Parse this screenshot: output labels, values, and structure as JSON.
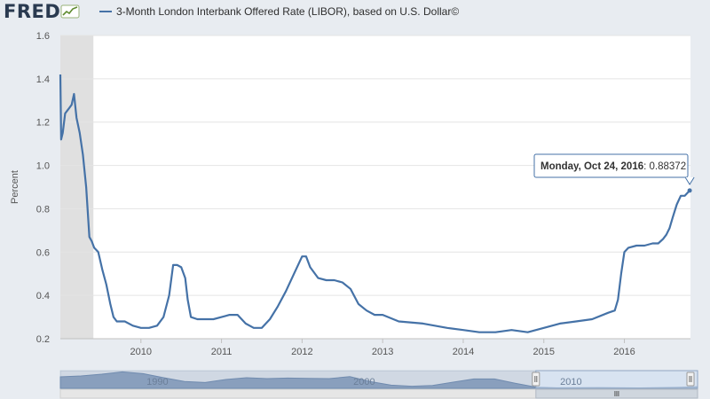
{
  "header": {
    "logo_text": "FRED",
    "logo_icon": "sparkline-icon",
    "series_title": "3-Month London Interbank Offered Rate (LIBOR), based on U.S. Dollar©"
  },
  "colors": {
    "series": "#4572a7",
    "recession_shade": "#e0e0e0",
    "plot_background": "#ffffff",
    "page_background": "#e8ecf1",
    "navigator_fill": "#8fa6c3",
    "navigator_selection": "#c7d7ec"
  },
  "tooltip": {
    "date": "Monday, Oct 24, 2016",
    "value_text": ": 0.88372",
    "x": 2016.81,
    "y": 0.884
  },
  "chart_data": {
    "type": "line",
    "title": "3-Month London Interbank Offered Rate (LIBOR), based on U.S. Dollar©",
    "xlabel": "",
    "ylabel": "Percent",
    "xlim": [
      2009.0,
      2016.82
    ],
    "ylim": [
      0.2,
      1.6
    ],
    "yticks": [
      "0.2",
      "0.4",
      "0.6",
      "0.8",
      "1.0",
      "1.2",
      "1.4",
      "1.6"
    ],
    "xticks": [
      "2010",
      "2011",
      "2012",
      "2013",
      "2014",
      "2015",
      "2016"
    ],
    "grid": true,
    "recession_band": [
      2009.0,
      2009.41
    ],
    "series": [
      {
        "name": "3-Month London Interbank Offered Rate (LIBOR), based on U.S. Dollar©",
        "x": [
          2009.0,
          2009.01,
          2009.03,
          2009.06,
          2009.1,
          2009.14,
          2009.17,
          2009.2,
          2009.24,
          2009.28,
          2009.32,
          2009.36,
          2009.39,
          2009.42,
          2009.47,
          2009.52,
          2009.57,
          2009.62,
          2009.66,
          2009.7,
          2009.8,
          2009.9,
          2010.0,
          2010.1,
          2010.2,
          2010.28,
          2010.35,
          2010.4,
          2010.45,
          2010.5,
          2010.55,
          2010.58,
          2010.62,
          2010.7,
          2010.8,
          2010.9,
          2011.0,
          2011.1,
          2011.2,
          2011.3,
          2011.4,
          2011.5,
          2011.6,
          2011.7,
          2011.8,
          2011.9,
          2012.0,
          2012.05,
          2012.1,
          2012.2,
          2012.3,
          2012.4,
          2012.5,
          2012.6,
          2012.7,
          2012.8,
          2012.9,
          2013.0,
          2013.2,
          2013.5,
          2013.8,
          2014.0,
          2014.2,
          2014.4,
          2014.6,
          2014.8,
          2015.0,
          2015.2,
          2015.4,
          2015.6,
          2015.8,
          2015.88,
          2015.92,
          2015.96,
          2016.0,
          2016.05,
          2016.15,
          2016.25,
          2016.35,
          2016.42,
          2016.48,
          2016.52,
          2016.56,
          2016.6,
          2016.65,
          2016.7,
          2016.75,
          2016.81
        ],
        "values": [
          1.42,
          1.12,
          1.15,
          1.24,
          1.26,
          1.28,
          1.33,
          1.22,
          1.15,
          1.05,
          0.9,
          0.67,
          0.65,
          0.62,
          0.6,
          0.52,
          0.45,
          0.36,
          0.3,
          0.28,
          0.28,
          0.26,
          0.25,
          0.25,
          0.26,
          0.3,
          0.4,
          0.54,
          0.54,
          0.53,
          0.48,
          0.38,
          0.3,
          0.29,
          0.29,
          0.29,
          0.3,
          0.31,
          0.31,
          0.27,
          0.25,
          0.25,
          0.29,
          0.35,
          0.42,
          0.5,
          0.58,
          0.58,
          0.53,
          0.48,
          0.47,
          0.47,
          0.46,
          0.43,
          0.36,
          0.33,
          0.31,
          0.31,
          0.28,
          0.27,
          0.25,
          0.24,
          0.23,
          0.23,
          0.24,
          0.23,
          0.25,
          0.27,
          0.28,
          0.29,
          0.32,
          0.33,
          0.38,
          0.5,
          0.6,
          0.62,
          0.63,
          0.63,
          0.64,
          0.64,
          0.66,
          0.68,
          0.71,
          0.76,
          0.82,
          0.86,
          0.86,
          0.884
        ]
      }
    ]
  },
  "navigator": {
    "labels": [
      "1990",
      "2000",
      "2010"
    ],
    "label_years": [
      1990,
      2000,
      2010
    ],
    "x_range": [
      1986.0,
      2016.82
    ],
    "selection": [
      2009.0,
      2016.82
    ],
    "profile": {
      "x": [
        1986.0,
        1987,
        1988,
        1989,
        1990,
        1991,
        1992,
        1993,
        1994,
        1995,
        1996,
        1997,
        1998,
        1999,
        2000,
        2001,
        2002,
        2003,
        2004,
        2005,
        2006,
        2007,
        2008,
        2009,
        2010,
        2012,
        2014,
        2016,
        2016.82
      ],
      "values": [
        6.5,
        7.0,
        8.0,
        9.3,
        8.3,
        6.0,
        3.9,
        3.3,
        5.0,
        6.0,
        5.5,
        5.8,
        5.6,
        5.5,
        6.6,
        3.8,
        1.8,
        1.2,
        1.6,
        3.5,
        5.3,
        5.3,
        2.9,
        0.7,
        0.3,
        0.45,
        0.24,
        0.6,
        0.88
      ]
    }
  }
}
